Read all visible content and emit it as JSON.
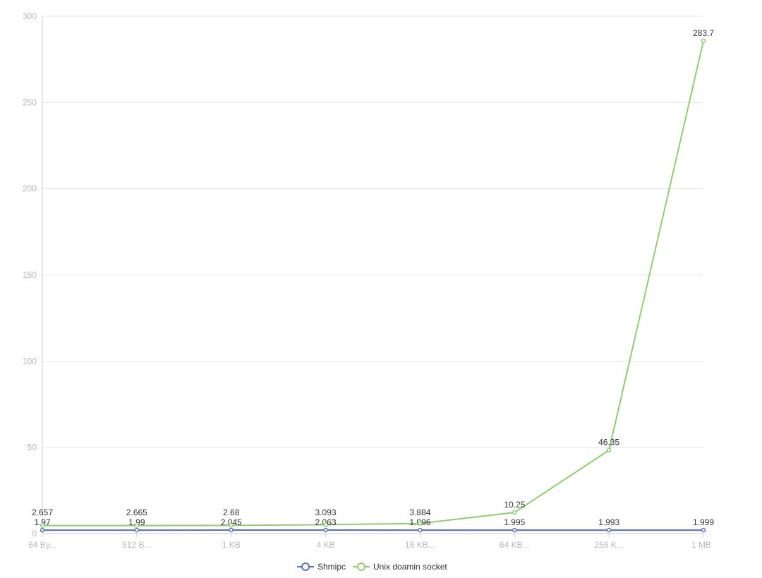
{
  "chart_data": {
    "type": "line",
    "stacked": true,
    "categories": [
      "64 By...",
      "512 B...",
      "1 KB",
      "4 KB",
      "16 KB...",
      "64 KB...",
      "256 K...",
      "1 MB"
    ],
    "series": [
      {
        "name": "Shmipc",
        "color": "#5470c6",
        "values": [
          1.97,
          1.99,
          2.045,
          2.063,
          1.996,
          1.995,
          1.993,
          1.999
        ]
      },
      {
        "name": "Unix doamin socket",
        "color": "#91cc75",
        "values": [
          2.657,
          2.665,
          2.68,
          3.093,
          3.884,
          10.25,
          46.35,
          283.7
        ]
      }
    ],
    "ylim": [
      0,
      300
    ],
    "yticks": [
      0,
      50,
      100,
      150,
      200,
      250,
      300
    ],
    "grid": true,
    "legend": "bottom-center",
    "title": "",
    "xlabel": "",
    "ylabel": ""
  }
}
